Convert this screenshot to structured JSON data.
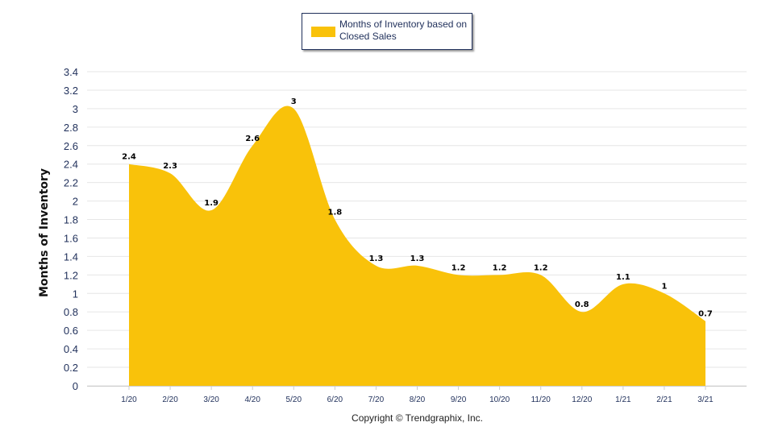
{
  "chart_data": {
    "type": "area",
    "title": "",
    "xlabel": "",
    "ylabel": "Months of Inventory",
    "categories": [
      "1/20",
      "2/20",
      "3/20",
      "4/20",
      "5/20",
      "6/20",
      "7/20",
      "8/20",
      "9/20",
      "10/20",
      "11/20",
      "12/20",
      "1/21",
      "2/21",
      "3/21"
    ],
    "series": [
      {
        "name": "Months of Inventory based on Closed Sales",
        "values": [
          2.4,
          2.3,
          1.9,
          2.6,
          3,
          1.8,
          1.3,
          1.3,
          1.2,
          1.2,
          1.2,
          0.8,
          1.1,
          1,
          0.7
        ]
      }
    ],
    "ylim": [
      0,
      3.4
    ],
    "yticks": [
      "0",
      "0.2",
      "0.4",
      "0.6",
      "0.8",
      "1",
      "1.2",
      "1.4",
      "1.6",
      "1.8",
      "2",
      "2.2",
      "2.4",
      "2.6",
      "2.8",
      "3",
      "3.2",
      "3.4"
    ],
    "grid": true,
    "legend": "top-center",
    "smooth": true,
    "data_labels": true,
    "colors": {
      "fill": "#F9C20A",
      "grid": "#e6e6e6",
      "legend_border": "#1f2f5a"
    }
  },
  "footer": {
    "copyright": "Copyright © Trendgraphix, Inc."
  }
}
